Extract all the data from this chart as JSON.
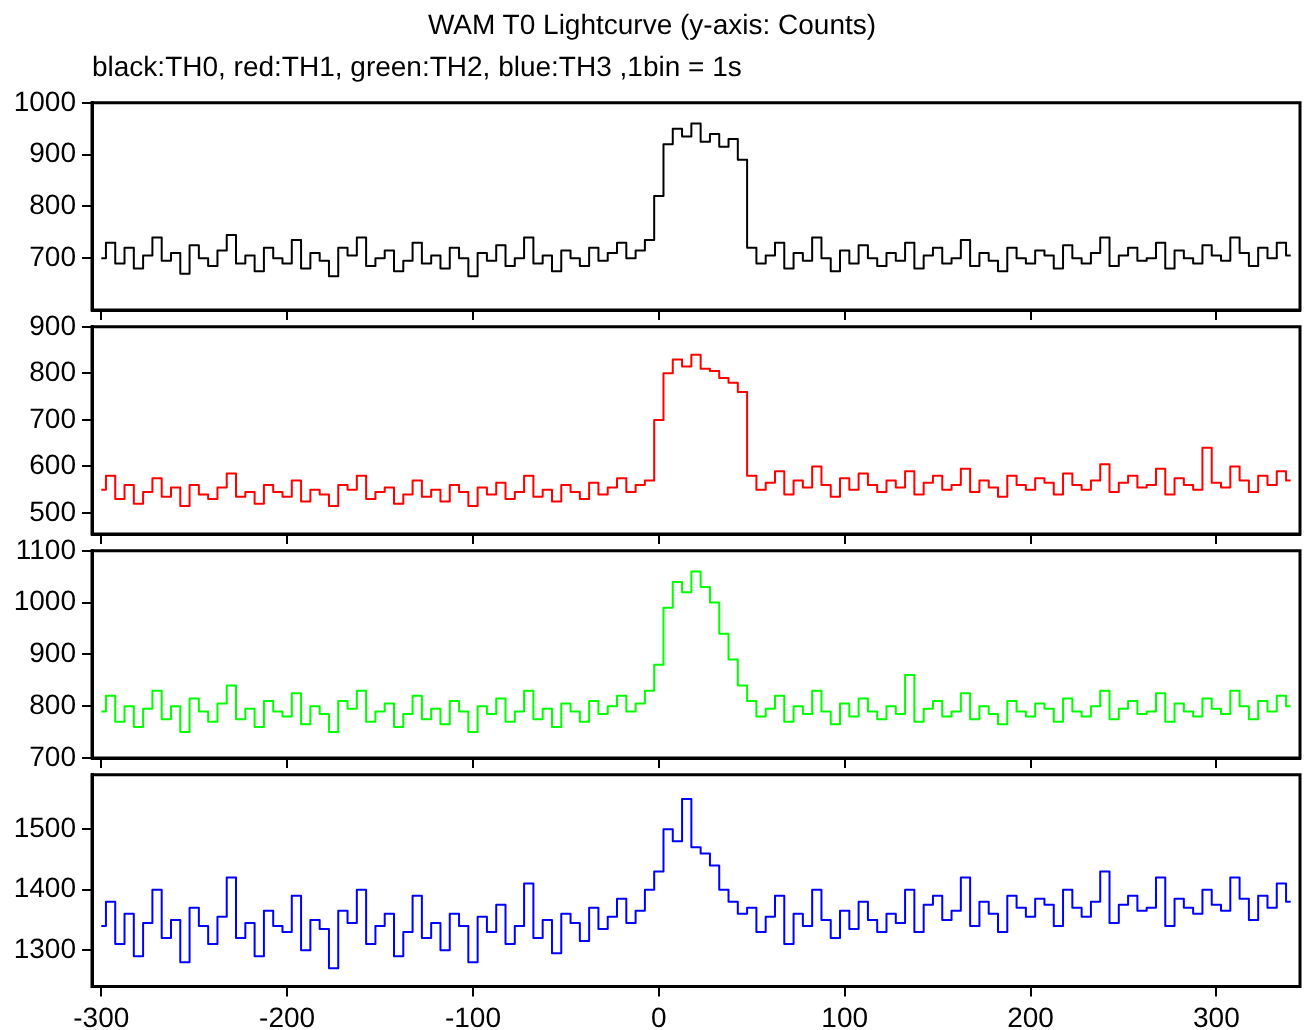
{
  "chart_data": [
    {
      "type": "step",
      "title": "WAM T0 Lightcurve (y-axis: Counts)",
      "subtitle": "black:TH0, red:TH1, green:TH2, blue:TH3 ,1bin = 1s",
      "x": [
        -300,
        -295,
        -290,
        -285,
        -280,
        -275,
        -270,
        -265,
        -260,
        -255,
        -250,
        -245,
        -240,
        -235,
        -230,
        -225,
        -220,
        -215,
        -210,
        -205,
        -200,
        -195,
        -190,
        -185,
        -180,
        -175,
        -170,
        -165,
        -160,
        -155,
        -150,
        -145,
        -140,
        -135,
        -130,
        -125,
        -120,
        -115,
        -110,
        -105,
        -100,
        -95,
        -90,
        -85,
        -80,
        -75,
        -70,
        -65,
        -60,
        -55,
        -50,
        -45,
        -40,
        -35,
        -30,
        -25,
        -20,
        -15,
        -10,
        -5,
        0,
        5,
        10,
        15,
        20,
        25,
        30,
        35,
        40,
        45,
        50,
        55,
        60,
        65,
        70,
        75,
        80,
        85,
        90,
        95,
        100,
        105,
        110,
        115,
        120,
        125,
        130,
        135,
        140,
        145,
        150,
        155,
        160,
        165,
        170,
        175,
        180,
        185,
        190,
        195,
        200,
        205,
        210,
        215,
        220,
        225,
        230,
        235,
        240,
        245,
        250,
        255,
        260,
        265,
        270,
        275,
        280,
        285,
        290,
        295,
        300,
        305,
        310,
        315,
        320,
        325,
        330,
        335,
        340
      ],
      "xlim": [
        -305,
        345
      ],
      "xticks": [
        -300,
        -200,
        -100,
        0,
        100,
        200,
        300
      ],
      "ylim": [
        600,
        1000
      ],
      "yticks": [
        700,
        800,
        900,
        1000
      ],
      "tick_labels": "y",
      "series": [
        {
          "color": "#000000",
          "values": [
            700,
            730,
            690,
            720,
            680,
            705,
            740,
            695,
            710,
            670,
            725,
            700,
            685,
            715,
            745,
            690,
            705,
            675,
            720,
            700,
            690,
            735,
            680,
            710,
            695,
            665,
            720,
            705,
            740,
            685,
            700,
            715,
            675,
            695,
            730,
            690,
            705,
            680,
            720,
            700,
            665,
            710,
            695,
            725,
            685,
            700,
            740,
            690,
            705,
            675,
            715,
            700,
            685,
            720,
            695,
            710,
            730,
            700,
            715,
            735,
            820,
            920,
            950,
            935,
            960,
            925,
            940,
            915,
            930,
            890,
            720,
            690,
            705,
            730,
            680,
            710,
            695,
            740,
            700,
            675,
            715,
            690,
            725,
            700,
            685,
            710,
            695,
            730,
            680,
            705,
            720,
            690,
            700,
            735,
            685,
            710,
            695,
            675,
            720,
            700,
            690,
            715,
            705,
            680,
            725,
            700,
            690,
            710,
            740,
            685,
            705,
            720,
            695,
            700,
            730,
            680,
            715,
            700,
            690,
            725,
            705,
            695,
            740,
            710,
            685,
            720,
            700,
            730,
            705
          ]
        }
      ]
    },
    {
      "type": "step",
      "x": [
        -300,
        -295,
        -290,
        -285,
        -280,
        -275,
        -270,
        -265,
        -260,
        -255,
        -250,
        -245,
        -240,
        -235,
        -230,
        -225,
        -220,
        -215,
        -210,
        -205,
        -200,
        -195,
        -190,
        -185,
        -180,
        -175,
        -170,
        -165,
        -160,
        -155,
        -150,
        -145,
        -140,
        -135,
        -130,
        -125,
        -120,
        -115,
        -110,
        -105,
        -100,
        -95,
        -90,
        -85,
        -80,
        -75,
        -70,
        -65,
        -60,
        -55,
        -50,
        -45,
        -40,
        -35,
        -30,
        -25,
        -20,
        -15,
        -10,
        -5,
        0,
        5,
        10,
        15,
        20,
        25,
        30,
        35,
        40,
        45,
        50,
        55,
        60,
        65,
        70,
        75,
        80,
        85,
        90,
        95,
        100,
        105,
        110,
        115,
        120,
        125,
        130,
        135,
        140,
        145,
        150,
        155,
        160,
        165,
        170,
        175,
        180,
        185,
        190,
        195,
        200,
        205,
        210,
        215,
        220,
        225,
        230,
        235,
        240,
        245,
        250,
        255,
        260,
        265,
        270,
        275,
        280,
        285,
        290,
        295,
        300,
        305,
        310,
        315,
        320,
        325,
        330,
        335,
        340
      ],
      "xlim": [
        -305,
        345
      ],
      "xticks": [
        -300,
        -200,
        -100,
        0,
        100,
        200,
        300
      ],
      "ylim": [
        455,
        900
      ],
      "yticks": [
        500,
        600,
        700,
        800,
        900
      ],
      "tick_labels": "y",
      "series": [
        {
          "color": "#ff0000",
          "values": [
            550,
            580,
            530,
            560,
            520,
            545,
            575,
            535,
            555,
            515,
            560,
            540,
            530,
            555,
            585,
            535,
            545,
            520,
            560,
            545,
            535,
            570,
            525,
            550,
            540,
            515,
            560,
            550,
            580,
            530,
            545,
            555,
            520,
            540,
            570,
            535,
            550,
            525,
            560,
            545,
            515,
            555,
            540,
            565,
            530,
            545,
            580,
            535,
            550,
            525,
            560,
            545,
            530,
            565,
            540,
            555,
            575,
            545,
            560,
            570,
            700,
            800,
            830,
            815,
            840,
            810,
            805,
            790,
            780,
            760,
            580,
            550,
            565,
            590,
            540,
            570,
            555,
            600,
            560,
            535,
            575,
            550,
            585,
            560,
            545,
            570,
            555,
            590,
            540,
            565,
            580,
            550,
            560,
            595,
            545,
            570,
            555,
            535,
            580,
            560,
            550,
            575,
            565,
            540,
            585,
            560,
            550,
            570,
            605,
            545,
            565,
            580,
            555,
            560,
            595,
            540,
            575,
            560,
            550,
            640,
            565,
            555,
            600,
            570,
            545,
            580,
            560,
            590,
            570
          ]
        }
      ]
    },
    {
      "type": "step",
      "x": [
        -300,
        -295,
        -290,
        -285,
        -280,
        -275,
        -270,
        -265,
        -260,
        -255,
        -250,
        -245,
        -240,
        -235,
        -230,
        -225,
        -220,
        -215,
        -210,
        -205,
        -200,
        -195,
        -190,
        -185,
        -180,
        -175,
        -170,
        -165,
        -160,
        -155,
        -150,
        -145,
        -140,
        -135,
        -130,
        -125,
        -120,
        -115,
        -110,
        -105,
        -100,
        -95,
        -90,
        -85,
        -80,
        -75,
        -70,
        -65,
        -60,
        -55,
        -50,
        -45,
        -40,
        -35,
        -30,
        -25,
        -20,
        -15,
        -10,
        -5,
        0,
        5,
        10,
        15,
        20,
        25,
        30,
        35,
        40,
        45,
        50,
        55,
        60,
        65,
        70,
        75,
        80,
        85,
        90,
        95,
        100,
        105,
        110,
        115,
        120,
        125,
        130,
        135,
        140,
        145,
        150,
        155,
        160,
        165,
        170,
        175,
        180,
        185,
        190,
        195,
        200,
        205,
        210,
        215,
        220,
        225,
        230,
        235,
        240,
        245,
        250,
        255,
        260,
        265,
        270,
        275,
        280,
        285,
        290,
        295,
        300,
        305,
        310,
        315,
        320,
        325,
        330,
        335,
        340
      ],
      "xlim": [
        -305,
        345
      ],
      "xticks": [
        -300,
        -200,
        -100,
        0,
        100,
        200,
        300
      ],
      "ylim": [
        700,
        1100
      ],
      "yticks": [
        700,
        800,
        900,
        1000,
        1100
      ],
      "tick_labels": "y",
      "series": [
        {
          "color": "#00ff00",
          "values": [
            790,
            820,
            770,
            800,
            760,
            795,
            830,
            775,
            800,
            750,
            815,
            790,
            770,
            805,
            840,
            775,
            795,
            760,
            810,
            790,
            780,
            825,
            765,
            800,
            785,
            750,
            810,
            795,
            830,
            770,
            790,
            805,
            760,
            785,
            820,
            775,
            795,
            765,
            810,
            790,
            750,
            800,
            785,
            815,
            770,
            790,
            830,
            775,
            795,
            760,
            805,
            790,
            770,
            810,
            785,
            800,
            820,
            790,
            805,
            830,
            880,
            990,
            1040,
            1020,
            1060,
            1030,
            1000,
            940,
            890,
            840,
            810,
            780,
            795,
            820,
            770,
            800,
            785,
            830,
            790,
            765,
            805,
            780,
            815,
            790,
            775,
            800,
            785,
            860,
            770,
            795,
            810,
            780,
            790,
            825,
            775,
            800,
            785,
            765,
            810,
            790,
            780,
            805,
            795,
            770,
            815,
            790,
            780,
            800,
            830,
            775,
            795,
            810,
            785,
            790,
            825,
            770,
            805,
            790,
            780,
            815,
            795,
            785,
            830,
            800,
            775,
            810,
            790,
            820,
            800
          ]
        }
      ]
    },
    {
      "type": "step",
      "x": [
        -300,
        -295,
        -290,
        -285,
        -280,
        -275,
        -270,
        -265,
        -260,
        -255,
        -250,
        -245,
        -240,
        -235,
        -230,
        -225,
        -220,
        -215,
        -210,
        -205,
        -200,
        -195,
        -190,
        -185,
        -180,
        -175,
        -170,
        -165,
        -160,
        -155,
        -150,
        -145,
        -140,
        -135,
        -130,
        -125,
        -120,
        -115,
        -110,
        -105,
        -100,
        -95,
        -90,
        -85,
        -80,
        -75,
        -70,
        -65,
        -60,
        -55,
        -50,
        -45,
        -40,
        -35,
        -30,
        -25,
        -20,
        -15,
        -10,
        -5,
        0,
        5,
        10,
        15,
        20,
        25,
        30,
        35,
        40,
        45,
        50,
        55,
        60,
        65,
        70,
        75,
        80,
        85,
        90,
        95,
        100,
        105,
        110,
        115,
        120,
        125,
        130,
        135,
        140,
        145,
        150,
        155,
        160,
        165,
        170,
        175,
        180,
        185,
        190,
        195,
        200,
        205,
        210,
        215,
        220,
        225,
        230,
        235,
        240,
        245,
        250,
        255,
        260,
        265,
        270,
        275,
        280,
        285,
        290,
        295,
        300,
        305,
        310,
        315,
        320,
        325,
        330,
        335,
        340
      ],
      "xlim": [
        -305,
        345
      ],
      "xticks": [
        -300,
        -200,
        -100,
        0,
        100,
        200,
        300
      ],
      "ylim": [
        1240,
        1590
      ],
      "yticks": [
        1300,
        1400,
        1500
      ],
      "series": [
        {
          "color": "#0000ff",
          "values": [
            1340,
            1380,
            1310,
            1360,
            1290,
            1345,
            1400,
            1320,
            1350,
            1280,
            1370,
            1340,
            1310,
            1355,
            1420,
            1320,
            1345,
            1290,
            1365,
            1340,
            1330,
            1390,
            1300,
            1350,
            1335,
            1270,
            1365,
            1345,
            1400,
            1310,
            1340,
            1360,
            1290,
            1330,
            1390,
            1320,
            1345,
            1300,
            1360,
            1340,
            1280,
            1355,
            1330,
            1375,
            1310,
            1340,
            1410,
            1320,
            1350,
            1295,
            1360,
            1345,
            1315,
            1370,
            1335,
            1355,
            1385,
            1345,
            1365,
            1400,
            1430,
            1500,
            1480,
            1550,
            1470,
            1460,
            1440,
            1400,
            1380,
            1360,
            1370,
            1330,
            1355,
            1390,
            1310,
            1360,
            1340,
            1400,
            1350,
            1320,
            1365,
            1335,
            1380,
            1350,
            1330,
            1360,
            1345,
            1400,
            1330,
            1375,
            1390,
            1350,
            1365,
            1420,
            1340,
            1380,
            1360,
            1330,
            1390,
            1370,
            1355,
            1385,
            1375,
            1340,
            1400,
            1370,
            1355,
            1380,
            1430,
            1345,
            1375,
            1390,
            1365,
            1370,
            1420,
            1340,
            1385,
            1370,
            1360,
            1400,
            1375,
            1365,
            1420,
            1385,
            1350,
            1390,
            1370,
            1410,
            1380
          ]
        }
      ]
    }
  ]
}
